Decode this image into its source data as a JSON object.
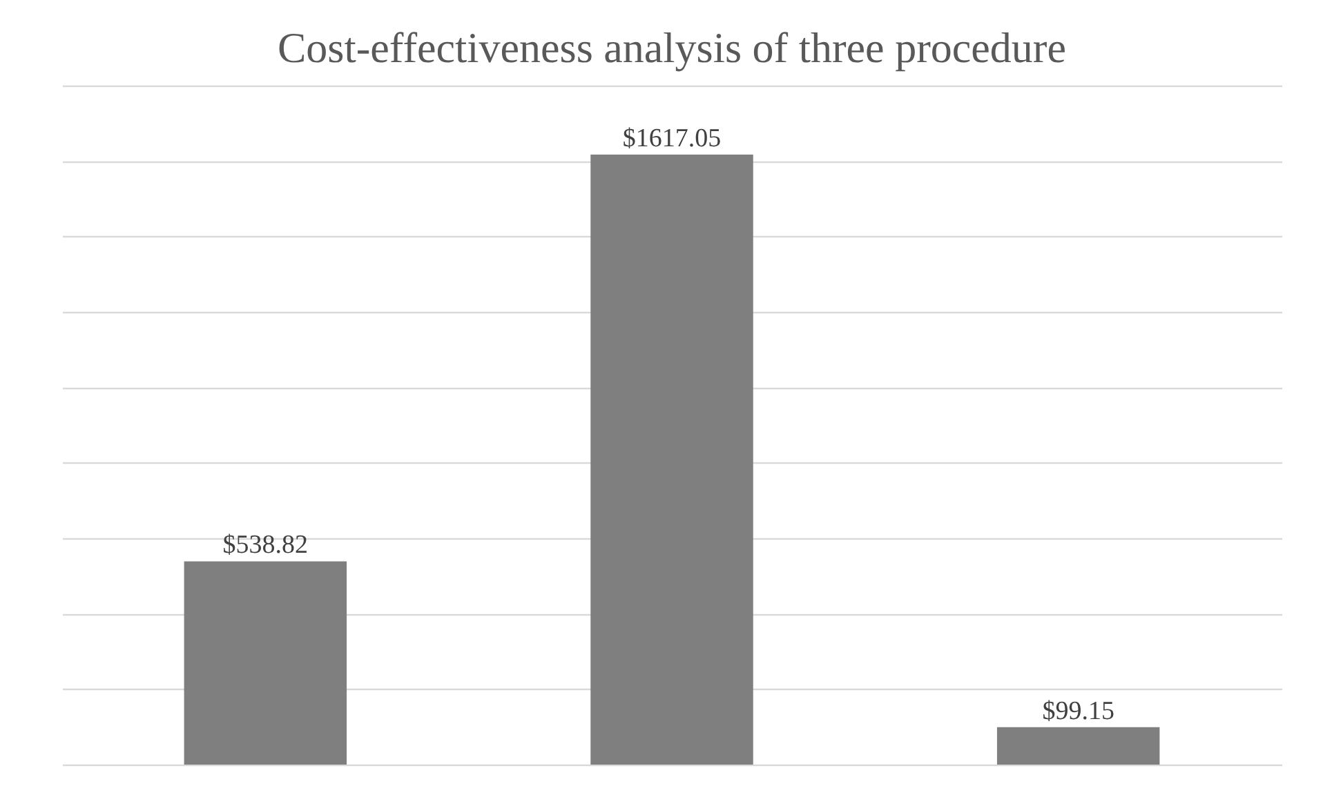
{
  "chart_data": {
    "type": "bar",
    "title": "Cost-effectiveness analysis of three procedure",
    "categories": [
      null,
      null,
      null
    ],
    "series": [
      {
        "color": "#7f7f7f",
        "values": [
          538.82,
          1617.05,
          99.15
        ],
        "value_labels": [
          "$538.82",
          "$1617.05",
          "$99.15"
        ]
      }
    ],
    "ylim": [
      0,
      1800
    ],
    "yticks": [
      {
        "value": 0,
        "label": null
      },
      {
        "value": 200,
        "label": null
      },
      {
        "value": 400,
        "label": null
      },
      {
        "value": 600,
        "label": null
      },
      {
        "value": 800,
        "label": null
      },
      {
        "value": 1000,
        "label": null
      },
      {
        "value": 1200,
        "label": null
      },
      {
        "value": 1400,
        "label": null
      },
      {
        "value": 1600,
        "label": null
      },
      {
        "value": 1800,
        "label": null
      }
    ],
    "grid": "y",
    "tick_labels": false
  }
}
